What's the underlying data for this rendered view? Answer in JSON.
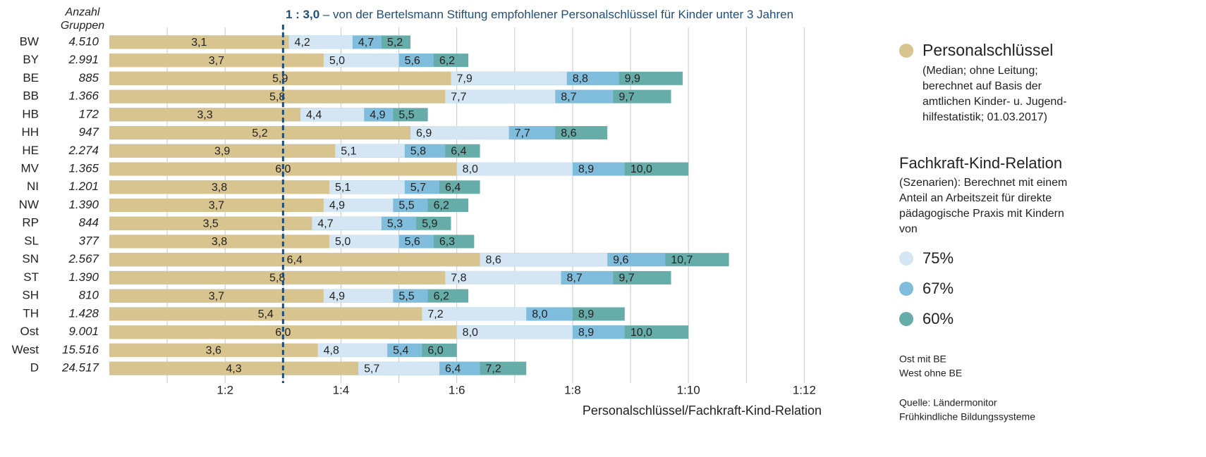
{
  "chart_data": {
    "type": "overlap-bar",
    "reference": {
      "value": 3.0,
      "label": "1 : 3,0",
      "text": " – von der Bertelsmann Stiftung empfohlener Personalschlüssel für Kinder unter 3 Jahren"
    },
    "groups_header": [
      "Anzahl",
      "Gruppen"
    ],
    "categories": [
      "BW",
      "BY",
      "BE",
      "BB",
      "HB",
      "HH",
      "HE",
      "MV",
      "NI",
      "NW",
      "RP",
      "SL",
      "SN",
      "ST",
      "SH",
      "TH",
      "Ost",
      "West",
      "D"
    ],
    "groups": [
      "4.510",
      "2.991",
      "885",
      "1.366",
      "172",
      "947",
      "2.274",
      "1.365",
      "1.201",
      "1.390",
      "844",
      "377",
      "2.567",
      "1.390",
      "810",
      "1.428",
      "9.001",
      "15.516",
      "24.517"
    ],
    "series": [
      {
        "name": "Personalschlüssel",
        "color": "#d8c48e",
        "values": [
          3.1,
          3.7,
          5.9,
          5.8,
          3.3,
          5.2,
          3.9,
          6.0,
          3.8,
          3.7,
          3.5,
          3.8,
          6.4,
          5.8,
          3.7,
          5.4,
          6.0,
          3.6,
          4.3
        ],
        "value_labels": [
          "3,1",
          "3,7",
          "5,9",
          "5,8",
          "3,3",
          "5,2",
          "3,9",
          "6,0",
          "3,8",
          "3,7",
          "3,5",
          "3,8",
          "6,4",
          "5,8",
          "3,7",
          "5,4",
          "6,0",
          "3,6",
          "4,3"
        ]
      },
      {
        "name": "75%",
        "color": "#d4e6f3",
        "values": [
          4.2,
          5.0,
          7.9,
          7.7,
          4.4,
          6.9,
          5.1,
          8.0,
          5.1,
          4.9,
          4.7,
          5.0,
          8.6,
          7.8,
          4.9,
          7.2,
          8.0,
          4.8,
          5.7
        ],
        "value_labels": [
          "4,2",
          "5,0",
          "7,9",
          "7,7",
          "4,4",
          "6,9",
          "5,1",
          "8,0",
          "5,1",
          "4,9",
          "4,7",
          "5,0",
          "8,6",
          "7,8",
          "4,9",
          "7,2",
          "8,0",
          "4,8",
          "5,7"
        ]
      },
      {
        "name": "67%",
        "color": "#80bddc",
        "values": [
          4.7,
          5.6,
          8.8,
          8.7,
          4.9,
          7.7,
          5.8,
          8.9,
          5.7,
          5.5,
          5.3,
          5.6,
          9.6,
          8.7,
          5.5,
          8.0,
          8.9,
          5.4,
          6.4
        ],
        "value_labels": [
          "4,7",
          "5,6",
          "8,8",
          "8,7",
          "4,9",
          "7,7",
          "5,8",
          "8,9",
          "5,7",
          "5,5",
          "5,3",
          "5,6",
          "9,6",
          "8,7",
          "5,5",
          "8,0",
          "8,9",
          "5,4",
          "6,4"
        ]
      },
      {
        "name": "60%",
        "color": "#66aca8",
        "values": [
          5.2,
          6.2,
          9.9,
          9.7,
          5.5,
          8.6,
          6.4,
          10.0,
          6.4,
          6.2,
          5.9,
          6.3,
          10.7,
          9.7,
          6.2,
          8.9,
          10.0,
          6.0,
          7.2
        ],
        "value_labels": [
          "5,2",
          "6,2",
          "9,9",
          "9,7",
          "5,5",
          "8,6",
          "6,4",
          "10,0",
          "6,4",
          "6,2",
          "5,9",
          "6,3",
          "10,7",
          "9,7",
          "6,2",
          "8,9",
          "10,0",
          "6,0",
          "7,2"
        ]
      }
    ],
    "xlim": [
      0,
      12.3
    ],
    "xticks": [
      {
        "value": 2,
        "label": "1:2"
      },
      {
        "value": 4,
        "label": "1:4"
      },
      {
        "value": 6,
        "label": "1:6"
      },
      {
        "value": 8,
        "label": "1:8"
      },
      {
        "value": 10,
        "label": "1:10"
      },
      {
        "value": 12,
        "label": "1:12"
      }
    ],
    "xgrid_minor": [
      1,
      3,
      5,
      7,
      9,
      11
    ],
    "xlabel": "Personalschlüssel/Fachkraft-Kind-Relation",
    "grid": true,
    "legend": {
      "main_desc": [
        "(Median; ohne Leitung;",
        "berechnet auf Basis der",
        "amtlichen Kinder- u. Jugend-",
        "hilfestatistik; 01.03.2017)"
      ],
      "fk_title": "Fachkraft-Kind-Relation",
      "fk_desc": [
        "(Szenarien): Berechnet mit einem",
        "Anteil an Arbeitszeit für direkte",
        "pädagogische Praxis mit Kindern",
        "von"
      ],
      "notes": [
        "Ost mit BE",
        "West ohne BE"
      ],
      "source": [
        "Quelle: Ländermonitor",
        "Frühkindliche Bildungssysteme"
      ]
    }
  }
}
